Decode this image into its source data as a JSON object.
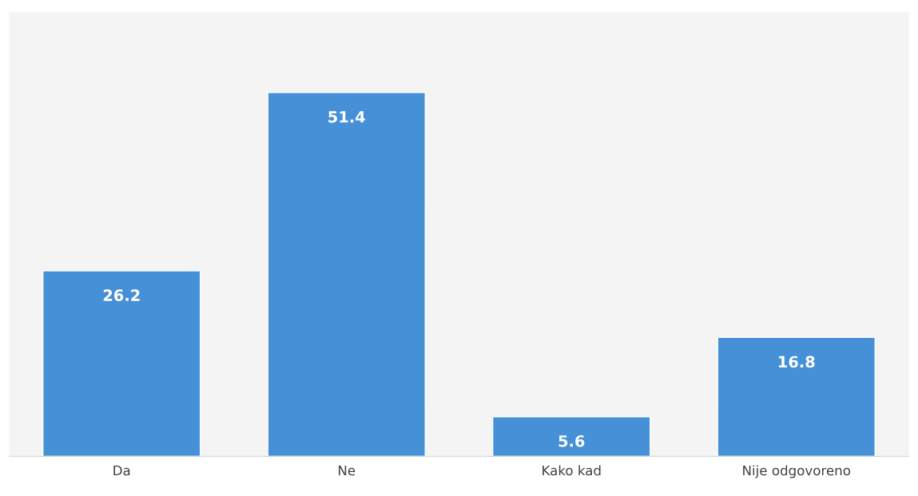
{
  "chart_data": {
    "type": "bar",
    "categories": [
      "Da",
      "Ne",
      "Kako kad",
      "Nije odgovoreno"
    ],
    "values": [
      26.2,
      51.4,
      5.6,
      16.8
    ],
    "color": "#4690d8",
    "data_labels": true,
    "grid": false,
    "legend": false
  }
}
